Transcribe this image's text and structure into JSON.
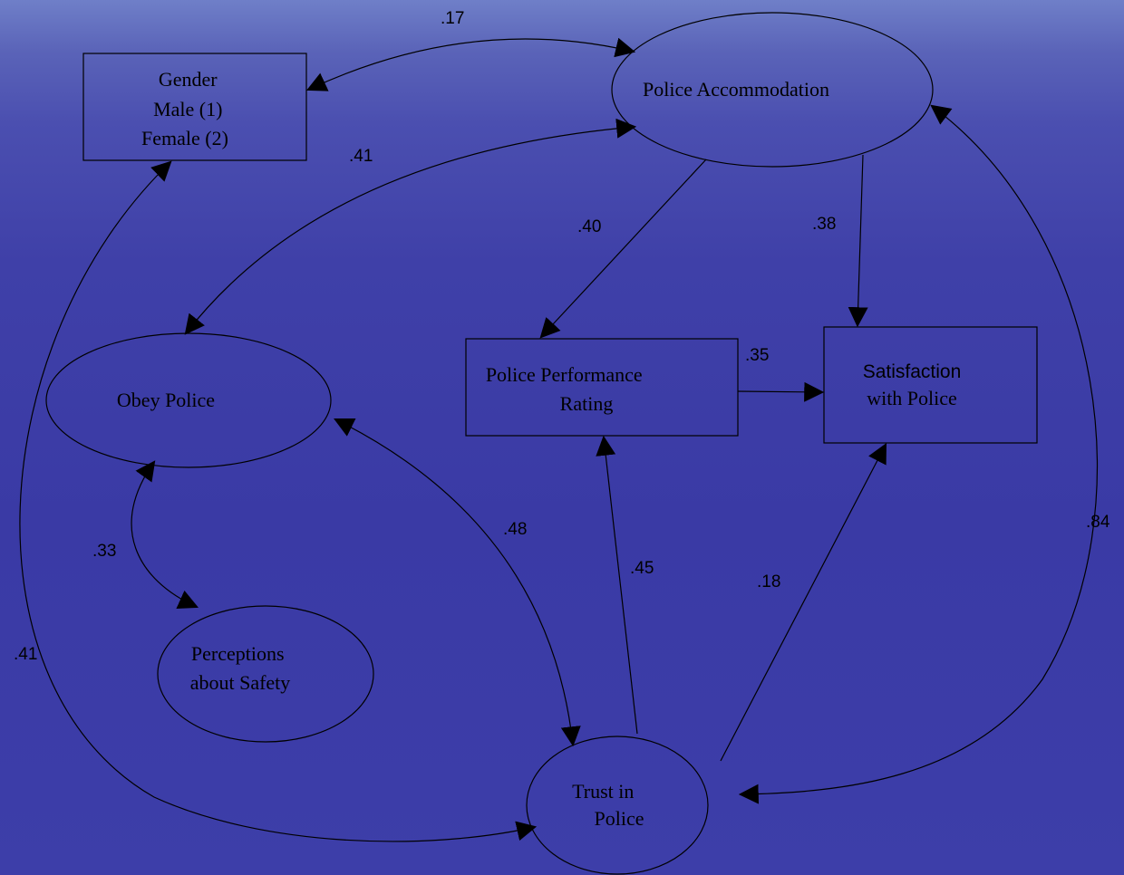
{
  "nodes": {
    "gender": {
      "lines": [
        "Gender",
        "Male (1)",
        "Female (2)"
      ]
    },
    "accommodation": {
      "label": "Police Accommodation"
    },
    "obey": {
      "label": "Obey Police"
    },
    "performance": {
      "lines": [
        "Police Performance",
        "Rating"
      ]
    },
    "satisfaction": {
      "lines": [
        "Satisfaction",
        "with Police"
      ]
    },
    "safety": {
      "lines": [
        "Perceptions",
        "about Safety"
      ]
    },
    "trust": {
      "lines": [
        "Trust in",
        "Police"
      ]
    }
  },
  "paths": {
    "gender_accommodation": ".17",
    "accommodation_obey": ".41",
    "accommodation_performance": ".40",
    "accommodation_satisfaction": ".38",
    "performance_satisfaction": ".35",
    "obey_trust": ".48",
    "trust_performance": ".45",
    "trust_satisfaction": ".18",
    "obey_safety": ".33",
    "gender_trust": ".41",
    "accommodation_trust": ".84"
  }
}
